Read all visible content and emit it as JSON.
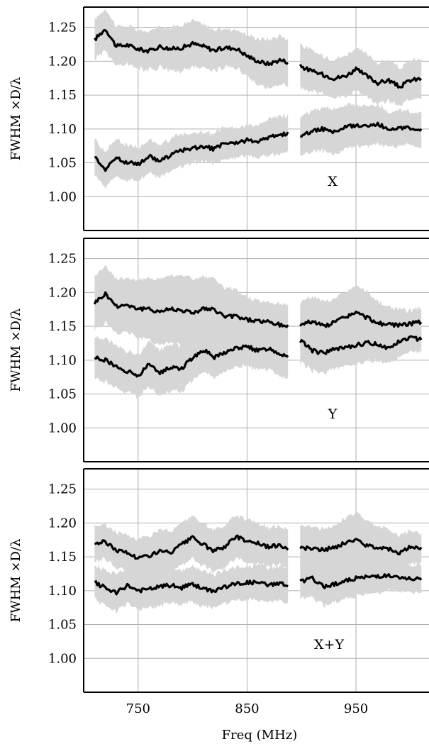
{
  "chart_data": {
    "type": "line",
    "xlabel": "Freq (MHz)",
    "x_tick_labels": [
      "750",
      "850",
      "950"
    ],
    "x_ticks": [
      750,
      850,
      950
    ],
    "xlim": [
      700,
      1017
    ],
    "ylim": [
      0.95,
      1.28
    ],
    "y_ticks": [
      1.0,
      1.05,
      1.1,
      1.15,
      1.2,
      1.25
    ],
    "y_tick_labels": [
      "1.00",
      "1.05",
      "1.10",
      "1.15",
      "1.20",
      "1.25"
    ],
    "grid": true,
    "gap_ranges": [
      [
        888,
        898
      ]
    ],
    "panels": [
      {
        "label": "X",
        "ylabel": "FWHM ×D/λ",
        "series": [
          {
            "x": [
              710,
              720,
              730,
              740,
              750,
              760,
              770,
              780,
              790,
              800,
              810,
              820,
              830,
              840,
              850,
              860,
              870,
              880,
              890,
              900,
              910,
              920,
              930,
              940,
              950,
              960,
              970,
              980,
              990,
              1000,
              1010
            ],
            "y": [
              1.232,
              1.248,
              1.222,
              1.224,
              1.218,
              1.215,
              1.222,
              1.218,
              1.22,
              1.226,
              1.222,
              1.216,
              1.22,
              1.219,
              1.208,
              1.2,
              1.196,
              1.202,
              1.198,
              1.192,
              1.185,
              1.18,
              1.175,
              1.178,
              1.188,
              1.178,
              1.168,
              1.172,
              1.162,
              1.172,
              1.174
            ],
            "band": [
              0.03,
              0.03,
              0.03,
              0.028,
              0.028,
              0.028,
              0.03,
              0.032,
              0.034,
              0.034,
              0.032,
              0.03,
              0.028,
              0.028,
              0.03,
              0.034,
              0.036,
              0.036,
              0.034,
              0.032,
              0.03,
              0.028,
              0.028,
              0.03,
              0.032,
              0.032,
              0.03,
              0.03,
              0.028,
              0.028,
              0.03
            ]
          },
          {
            "x": [
              710,
              720,
              730,
              740,
              750,
              760,
              770,
              780,
              790,
              800,
              810,
              820,
              830,
              840,
              850,
              860,
              870,
              880,
              890,
              900,
              910,
              920,
              930,
              940,
              950,
              960,
              970,
              980,
              990,
              1000,
              1010
            ],
            "y": [
              1.06,
              1.04,
              1.058,
              1.05,
              1.048,
              1.06,
              1.052,
              1.062,
              1.068,
              1.072,
              1.074,
              1.07,
              1.08,
              1.078,
              1.084,
              1.082,
              1.088,
              1.09,
              1.096,
              1.088,
              1.098,
              1.1,
              1.096,
              1.102,
              1.106,
              1.104,
              1.108,
              1.098,
              1.1,
              1.102,
              1.1
            ],
            "band": [
              0.026,
              0.026,
              0.028,
              0.026,
              0.024,
              0.024,
              0.024,
              0.024,
              0.024,
              0.022,
              0.022,
              0.022,
              0.024,
              0.022,
              0.022,
              0.024,
              0.026,
              0.028,
              0.026,
              0.028,
              0.03,
              0.032,
              0.034,
              0.032,
              0.03,
              0.03,
              0.028,
              0.026,
              0.026,
              0.024,
              0.026
            ]
          }
        ]
      },
      {
        "label": "Y",
        "ylabel": "FWHM ×D/λ",
        "series": [
          {
            "x": [
              710,
              720,
              730,
              740,
              750,
              760,
              770,
              780,
              790,
              800,
              810,
              820,
              830,
              840,
              850,
              860,
              870,
              880,
              890,
              900,
              910,
              920,
              930,
              940,
              950,
              960,
              970,
              980,
              990,
              1000,
              1010
            ],
            "y": [
              1.185,
              1.198,
              1.18,
              1.182,
              1.176,
              1.175,
              1.172,
              1.176,
              1.174,
              1.17,
              1.176,
              1.174,
              1.164,
              1.165,
              1.16,
              1.158,
              1.156,
              1.152,
              1.15,
              1.153,
              1.158,
              1.15,
              1.156,
              1.164,
              1.17,
              1.163,
              1.155,
              1.152,
              1.152,
              1.154,
              1.156
            ],
            "band": [
              0.04,
              0.042,
              0.04,
              0.04,
              0.042,
              0.046,
              0.048,
              0.05,
              0.052,
              0.05,
              0.048,
              0.046,
              0.042,
              0.038,
              0.034,
              0.03,
              0.03,
              0.032,
              0.032,
              0.034,
              0.036,
              0.036,
              0.034,
              0.036,
              0.04,
              0.038,
              0.032,
              0.026,
              0.022,
              0.02,
              0.02
            ]
          },
          {
            "x": [
              710,
              720,
              730,
              740,
              750,
              760,
              770,
              780,
              790,
              800,
              810,
              820,
              830,
              840,
              850,
              860,
              870,
              880,
              890,
              900,
              910,
              920,
              930,
              940,
              950,
              960,
              970,
              980,
              990,
              1000,
              1010
            ],
            "y": [
              1.104,
              1.1,
              1.09,
              1.084,
              1.076,
              1.094,
              1.082,
              1.09,
              1.088,
              1.104,
              1.116,
              1.104,
              1.112,
              1.118,
              1.12,
              1.114,
              1.118,
              1.11,
              1.106,
              1.128,
              1.114,
              1.11,
              1.116,
              1.118,
              1.122,
              1.126,
              1.124,
              1.118,
              1.128,
              1.134,
              1.13
            ],
            "band": [
              0.03,
              0.032,
              0.032,
              0.03,
              0.032,
              0.034,
              0.034,
              0.034,
              0.034,
              0.032,
              0.032,
              0.03,
              0.028,
              0.028,
              0.028,
              0.028,
              0.03,
              0.032,
              0.034,
              0.032,
              0.03,
              0.03,
              0.028,
              0.028,
              0.028,
              0.026,
              0.024,
              0.022,
              0.022,
              0.02,
              0.02
            ]
          }
        ]
      },
      {
        "label": "X+Y",
        "ylabel": "FWHM ×D/λ",
        "series": [
          {
            "x": [
              710,
              720,
              730,
              740,
              750,
              760,
              770,
              780,
              790,
              800,
              810,
              820,
              830,
              840,
              850,
              860,
              870,
              880,
              890,
              900,
              910,
              920,
              930,
              940,
              950,
              960,
              970,
              980,
              990,
              1000,
              1010
            ],
            "y": [
              1.17,
              1.172,
              1.16,
              1.156,
              1.148,
              1.152,
              1.158,
              1.156,
              1.168,
              1.178,
              1.168,
              1.158,
              1.166,
              1.18,
              1.174,
              1.17,
              1.164,
              1.168,
              1.16,
              1.164,
              1.162,
              1.16,
              1.164,
              1.17,
              1.176,
              1.166,
              1.165,
              1.162,
              1.156,
              1.164,
              1.164
            ],
            "band": [
              0.026,
              0.026,
              0.026,
              0.026,
              0.028,
              0.03,
              0.032,
              0.032,
              0.032,
              0.032,
              0.032,
              0.03,
              0.03,
              0.032,
              0.032,
              0.03,
              0.028,
              0.028,
              0.03,
              0.032,
              0.032,
              0.03,
              0.032,
              0.036,
              0.04,
              0.036,
              0.032,
              0.028,
              0.026,
              0.024,
              0.022
            ]
          },
          {
            "x": [
              710,
              720,
              730,
              740,
              750,
              760,
              770,
              780,
              790,
              800,
              810,
              820,
              830,
              840,
              850,
              860,
              870,
              880,
              890,
              900,
              910,
              920,
              930,
              940,
              950,
              960,
              970,
              980,
              990,
              1000,
              1010
            ],
            "y": [
              1.112,
              1.104,
              1.096,
              1.108,
              1.1,
              1.102,
              1.106,
              1.108,
              1.104,
              1.11,
              1.102,
              1.1,
              1.106,
              1.11,
              1.112,
              1.112,
              1.108,
              1.112,
              1.104,
              1.114,
              1.118,
              1.106,
              1.11,
              1.114,
              1.118,
              1.12,
              1.122,
              1.122,
              1.118,
              1.118,
              1.116
            ],
            "band": [
              0.024,
              0.026,
              0.028,
              0.026,
              0.028,
              0.028,
              0.028,
              0.026,
              0.026,
              0.026,
              0.026,
              0.024,
              0.024,
              0.024,
              0.024,
              0.026,
              0.026,
              0.026,
              0.026,
              0.026,
              0.028,
              0.028,
              0.026,
              0.026,
              0.026,
              0.026,
              0.024,
              0.022,
              0.02,
              0.02,
              0.02
            ]
          }
        ]
      }
    ]
  }
}
